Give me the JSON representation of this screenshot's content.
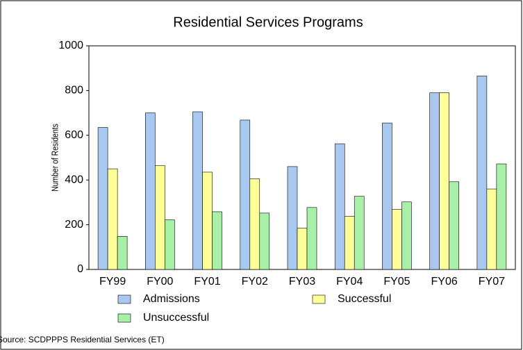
{
  "chart_data": {
    "type": "bar",
    "title": "Residential Services Programs",
    "y_label": "Number of Residents",
    "source": "Source: SCDPPPS Residential Services (ET)",
    "categories": [
      "FY99",
      "FY00",
      "FY01",
      "FY02",
      "FY03",
      "FY04",
      "FY05",
      "FY06",
      "FY07"
    ],
    "series": [
      {
        "name": "Admissions",
        "color": "#a8c8f0",
        "values": [
          635,
          700,
          705,
          668,
          460,
          562,
          655,
          790,
          865
        ]
      },
      {
        "name": "Successful",
        "color": "#ffff99",
        "values": [
          450,
          465,
          435,
          405,
          185,
          238,
          268,
          790,
          360
        ]
      },
      {
        "name": "Unsuccessful",
        "color": "#a8f0a8",
        "values": [
          148,
          222,
          258,
          252,
          277,
          327,
          302,
          392,
          472
        ]
      }
    ],
    "ylim": [
      0,
      1000
    ],
    "yticks": [
      0,
      200,
      400,
      600,
      800,
      1000
    ],
    "grid": false
  }
}
